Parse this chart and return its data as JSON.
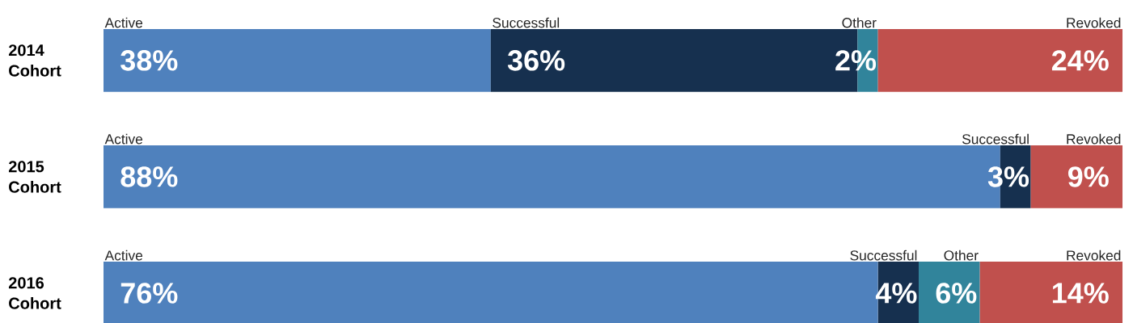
{
  "chart_data": {
    "type": "bar",
    "orientation": "horizontal",
    "stacked": true,
    "legend": false,
    "xlim": [
      0,
      100
    ],
    "categories": [
      "2014 Cohort",
      "2015 Cohort",
      "2016 Cohort"
    ],
    "series": [
      {
        "name": "Active",
        "color": "#4f81bd",
        "values": [
          38,
          88,
          76
        ],
        "value_labels": [
          "38%",
          "88%",
          "76%"
        ]
      },
      {
        "name": "Successful",
        "color": "#16304f",
        "values": [
          36,
          3,
          4
        ],
        "value_labels": [
          "36%",
          "3%",
          "4%"
        ]
      },
      {
        "name": "Other",
        "color": "#31849b",
        "values": [
          2,
          null,
          6
        ],
        "value_labels": [
          "2%",
          null,
          "6%"
        ]
      },
      {
        "name": "Revoked",
        "color": "#c0504d",
        "values": [
          24,
          9,
          14
        ],
        "value_labels": [
          "24%",
          "9%",
          "14%"
        ]
      }
    ]
  }
}
